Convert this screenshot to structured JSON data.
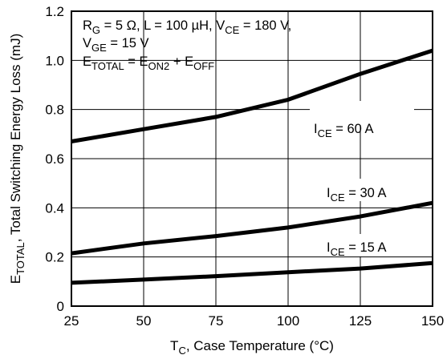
{
  "chart_data": {
    "type": "line",
    "xlabel": "T_C, Case Temperature (°C)",
    "ylabel": "E_TOTAL, Total Switching Energy Loss (mJ)",
    "xlim": [
      25,
      150
    ],
    "ylim": [
      0,
      1.2
    ],
    "x_ticks": [
      25,
      50,
      75,
      100,
      125,
      150
    ],
    "y_ticks": [
      0,
      0.2,
      0.4,
      0.6,
      0.8,
      1.0,
      1.2
    ],
    "y_tick_labels": [
      "0",
      "0.2",
      "0.4",
      "0.6",
      "0.8",
      "1.0",
      "1.2"
    ],
    "grid": true,
    "annotations": {
      "line1": "R_G = 5 Ω, L = 100 µH, V_CE = 180 V,",
      "line2": "V_GE = 15 V",
      "line3": "E_TOTAL = E_ON2 + E_OFF"
    },
    "series": [
      {
        "name": "I_CE = 60 A",
        "x": [
          25,
          50,
          75,
          100,
          125,
          150
        ],
        "y": [
          0.67,
          0.72,
          0.77,
          0.84,
          0.945,
          1.04
        ]
      },
      {
        "name": "I_CE = 30 A",
        "x": [
          25,
          50,
          75,
          100,
          125,
          150
        ],
        "y": [
          0.215,
          0.255,
          0.285,
          0.32,
          0.365,
          0.42
        ]
      },
      {
        "name": "I_CE = 15 A",
        "x": [
          25,
          50,
          75,
          100,
          125,
          150
        ],
        "y": [
          0.095,
          0.108,
          0.122,
          0.138,
          0.153,
          0.175
        ]
      }
    ]
  }
}
